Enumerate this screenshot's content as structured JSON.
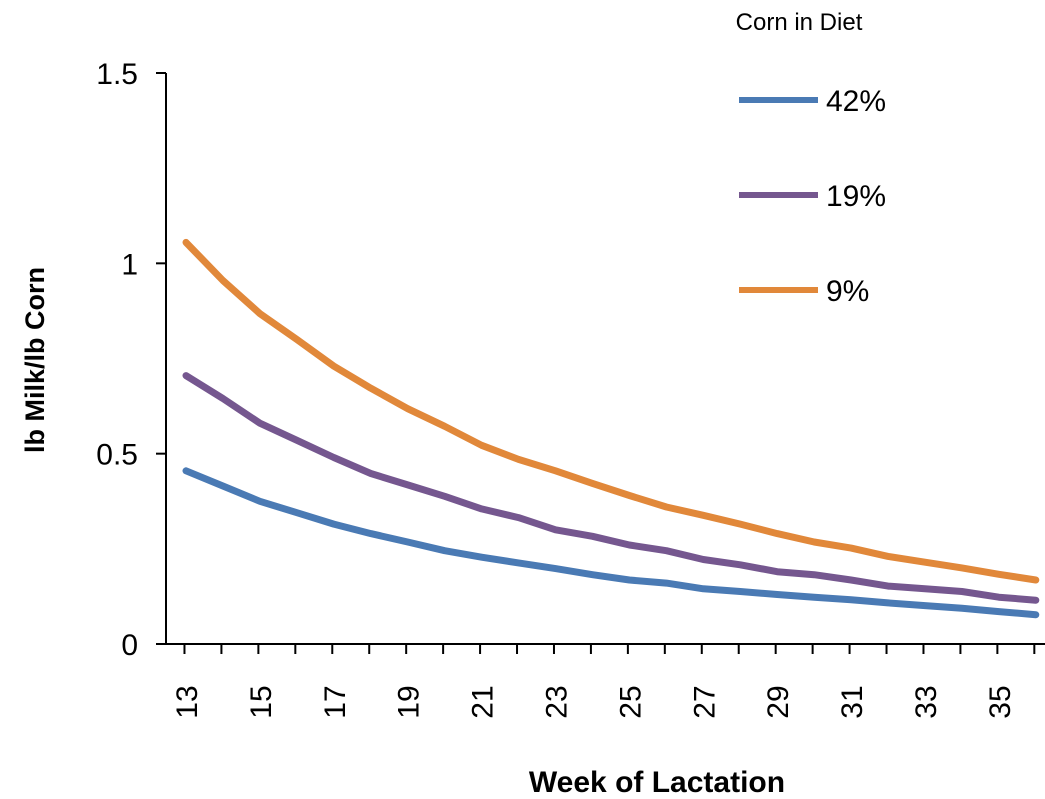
{
  "chart_data": {
    "type": "line",
    "xlabel": "Week of Lactation",
    "ylabel": "lb Milk/lb  Corn",
    "xlim": [
      13,
      36
    ],
    "ylim": [
      0,
      1.5
    ],
    "x_ticks": [
      13,
      15,
      17,
      19,
      21,
      23,
      25,
      27,
      29,
      31,
      33,
      35
    ],
    "y_ticks": [
      0,
      0.5,
      1,
      1.5
    ],
    "grid": false,
    "legend": {
      "title": "Corn in Diet",
      "placement": "top-right"
    },
    "x": [
      13,
      14,
      15,
      16,
      17,
      18,
      19,
      20,
      21,
      22,
      23,
      24,
      25,
      26,
      27,
      28,
      29,
      30,
      31,
      32,
      33,
      34,
      35,
      36
    ],
    "series": [
      {
        "name": "42%",
        "color": "#4a7ab4",
        "values": [
          0.455,
          0.415,
          0.375,
          0.345,
          0.315,
          0.29,
          0.268,
          0.245,
          0.228,
          0.213,
          0.198,
          0.182,
          0.168,
          0.16,
          0.145,
          0.138,
          0.13,
          0.123,
          0.116,
          0.108,
          0.101,
          0.094,
          0.085,
          0.077
        ]
      },
      {
        "name": "19%",
        "color": "#75578f",
        "values": [
          0.705,
          0.645,
          0.58,
          0.535,
          0.49,
          0.448,
          0.418,
          0.388,
          0.355,
          0.332,
          0.3,
          0.283,
          0.26,
          0.245,
          0.222,
          0.208,
          0.19,
          0.182,
          0.168,
          0.152,
          0.145,
          0.138,
          0.123,
          0.115
        ]
      },
      {
        "name": "9%",
        "color": "#e1883a",
        "values": [
          1.055,
          0.955,
          0.868,
          0.8,
          0.73,
          0.672,
          0.618,
          0.572,
          0.522,
          0.485,
          0.455,
          0.422,
          0.39,
          0.36,
          0.338,
          0.315,
          0.29,
          0.268,
          0.252,
          0.23,
          0.215,
          0.2,
          0.183,
          0.168
        ]
      }
    ]
  }
}
